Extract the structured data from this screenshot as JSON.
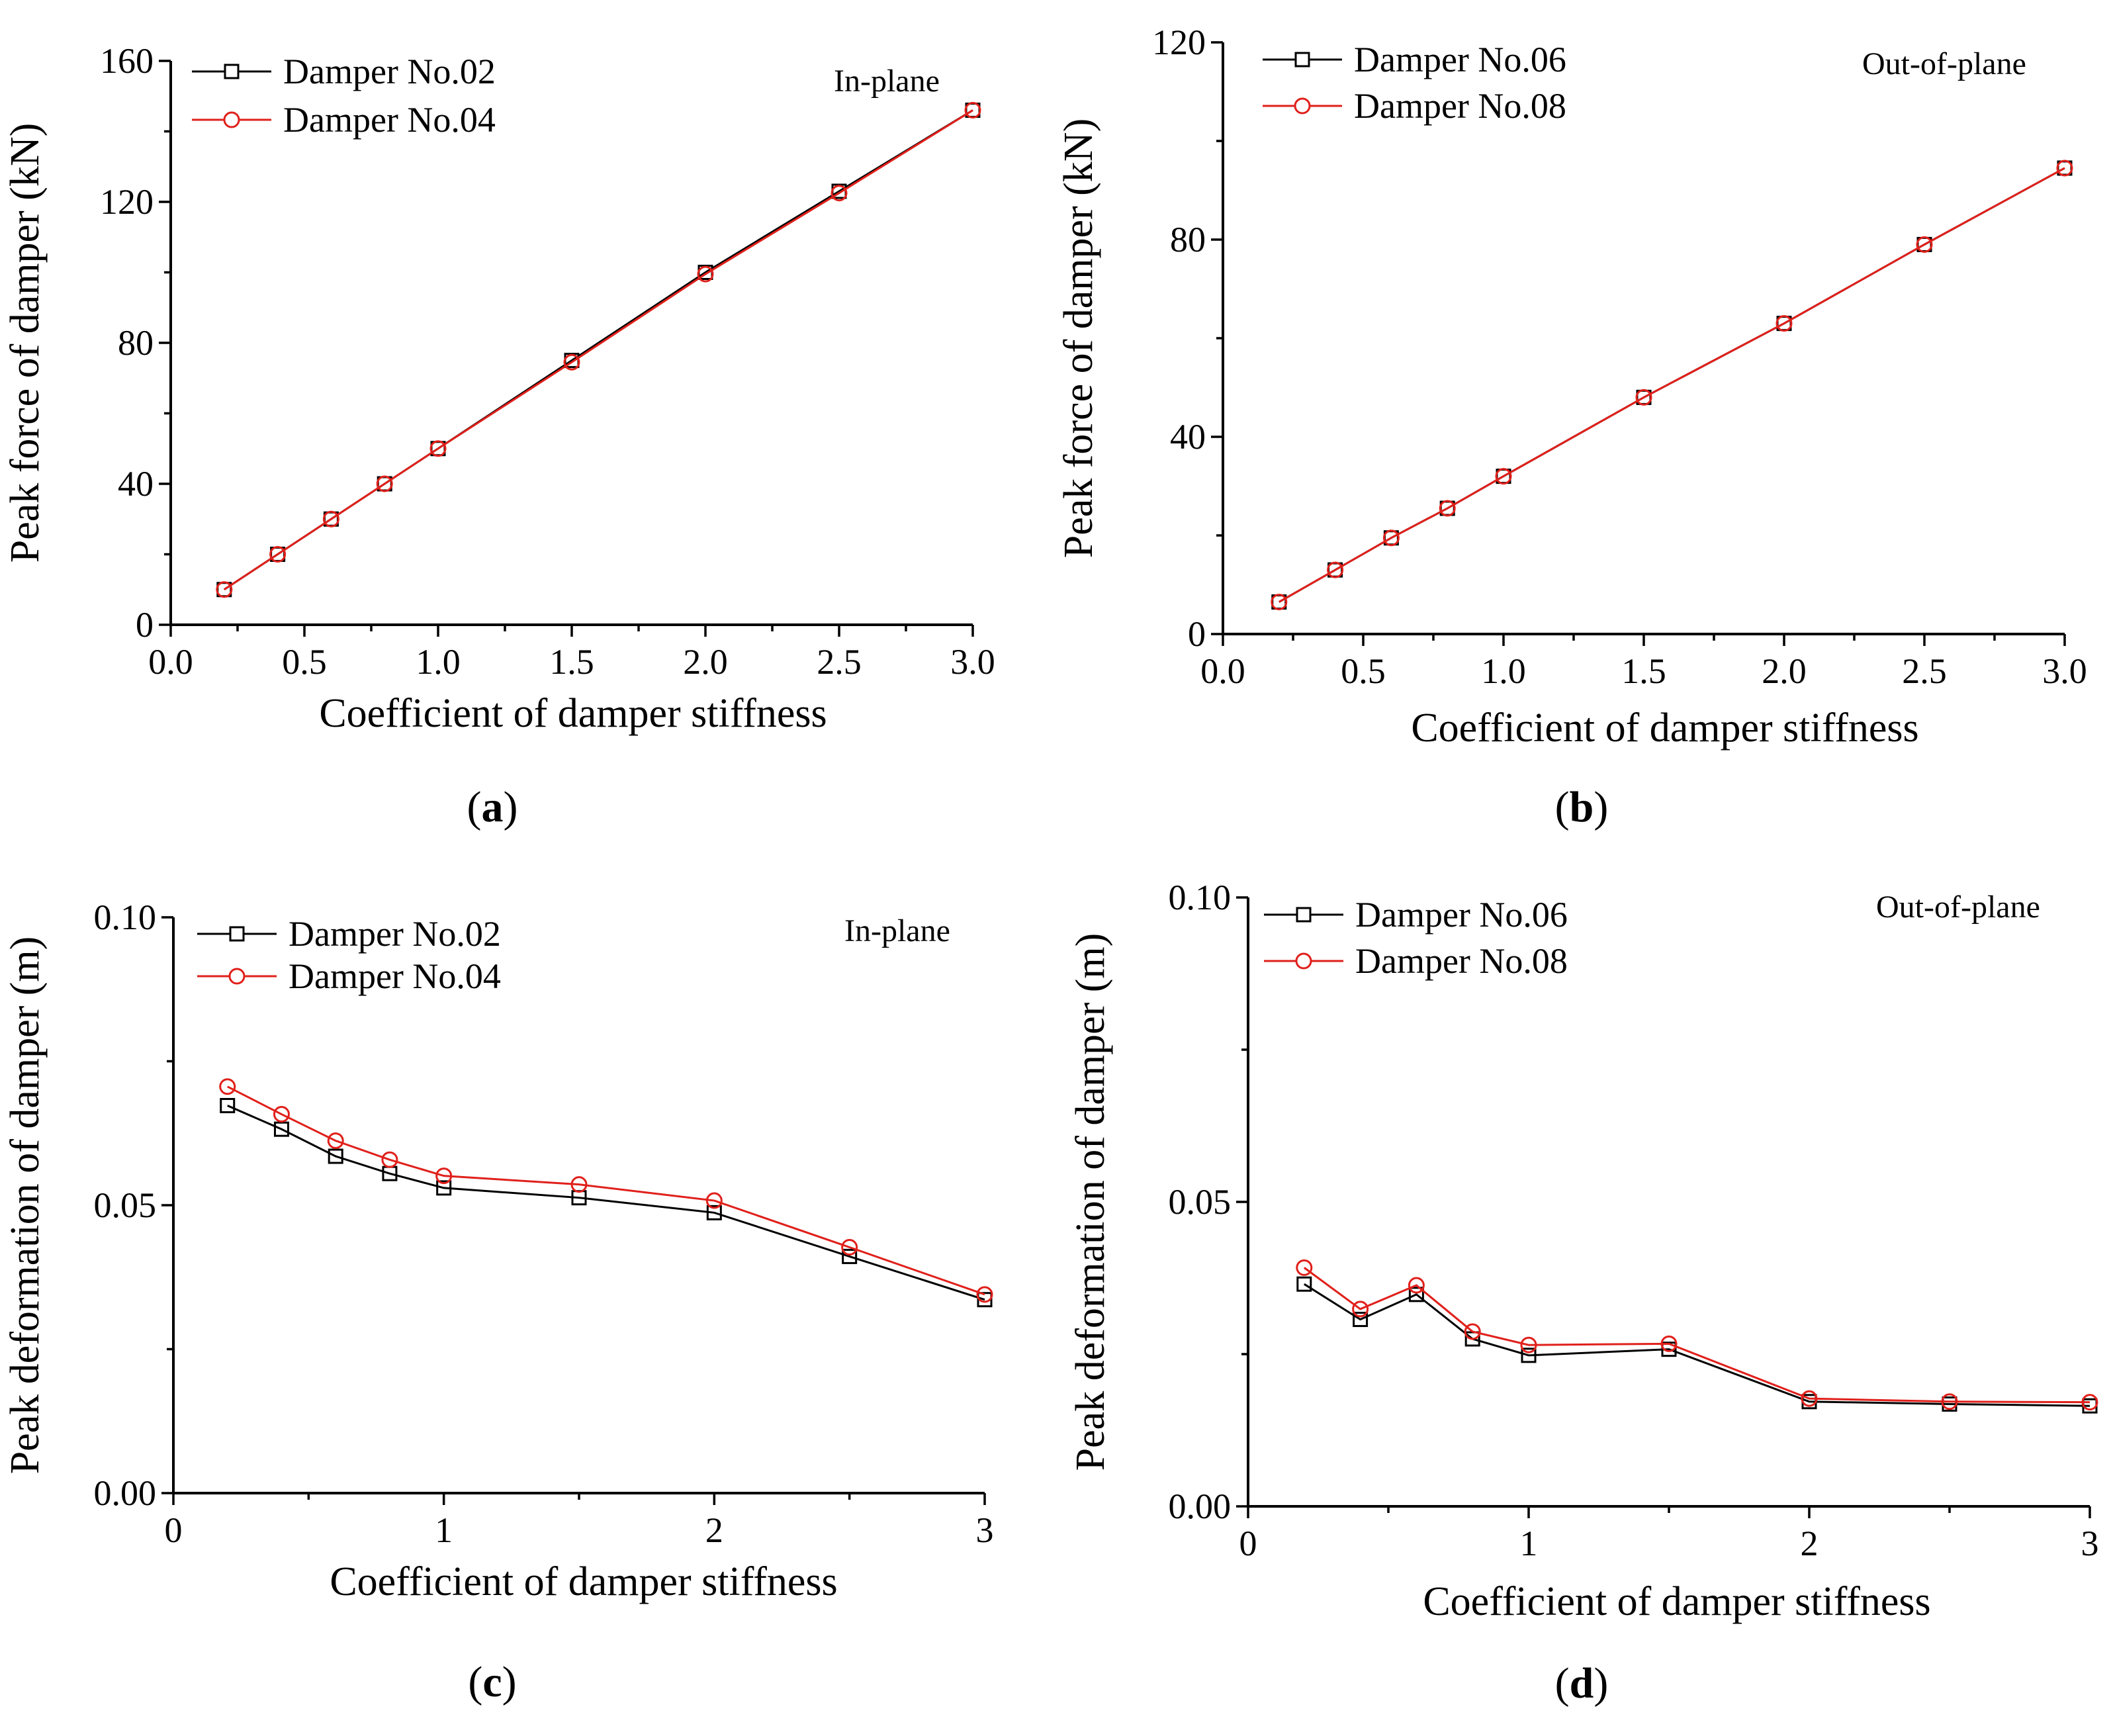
{
  "colors": {
    "black_series": "#000000",
    "red_series": "#E0201B"
  },
  "chart_data": [
    {
      "panel": "a",
      "panel_label": "a",
      "type": "line",
      "annotation": "In-plane",
      "xlabel": "Coefficient of damper stiffness",
      "ylabel": "Peak force of damper (kN)",
      "xlim": [
        0,
        3.0
      ],
      "ylim": [
        0,
        160
      ],
      "xticks": [
        0.0,
        0.5,
        1.0,
        1.5,
        2.0,
        2.5,
        3.0
      ],
      "xtick_labels": [
        "0.0",
        "0.5",
        "1.0",
        "1.5",
        "2.0",
        "2.5",
        "3.0"
      ],
      "yticks": [
        0,
        40,
        80,
        120,
        160
      ],
      "ytick_labels": [
        "0",
        "40",
        "80",
        "120",
        "160"
      ],
      "legend_position": "top-left",
      "x": [
        0.2,
        0.4,
        0.6,
        0.8,
        1.0,
        1.5,
        2.0,
        2.5,
        3.0
      ],
      "series": [
        {
          "name": "Damper No.02",
          "marker": "square",
          "color": "#000000",
          "values": [
            10,
            20,
            30,
            40,
            50,
            75,
            100,
            123,
            146
          ]
        },
        {
          "name": "Damper No.04",
          "marker": "circle",
          "color": "#E0201B",
          "values": [
            10,
            20,
            30,
            40,
            50,
            74.5,
            99.5,
            122.5,
            146
          ]
        }
      ]
    },
    {
      "panel": "b",
      "panel_label": "b",
      "type": "line",
      "annotation": "Out-of-plane",
      "xlabel": "Coefficient of damper stiffness",
      "ylabel": "Peak force of damper (kN)",
      "xlim": [
        0,
        3.0
      ],
      "ylim": [
        0,
        120
      ],
      "xticks": [
        0.0,
        0.5,
        1.0,
        1.5,
        2.0,
        2.5,
        3.0
      ],
      "xtick_labels": [
        "0.0",
        "0.5",
        "1.0",
        "1.5",
        "2.0",
        "2.5",
        "3.0"
      ],
      "yticks": [
        0,
        40,
        80,
        120
      ],
      "ytick_labels": [
        "0",
        "40",
        "80",
        "120"
      ],
      "legend_position": "top-left",
      "x": [
        0.2,
        0.4,
        0.6,
        0.8,
        1.0,
        1.5,
        2.0,
        2.5,
        3.0
      ],
      "series": [
        {
          "name": "Damper No.06",
          "marker": "square",
          "color": "#000000",
          "values": [
            6.5,
            13,
            19.5,
            25.5,
            32,
            48,
            63,
            79,
            94.5
          ]
        },
        {
          "name": "Damper No.08",
          "marker": "circle",
          "color": "#E0201B",
          "values": [
            6.5,
            13,
            19.5,
            25.5,
            32,
            48,
            63,
            79,
            94.5
          ]
        }
      ]
    },
    {
      "panel": "c",
      "panel_label": "c",
      "type": "line",
      "annotation": "In-plane",
      "xlabel": "Coefficient of damper stiffness",
      "ylabel": "Peak deformation of damper (m)",
      "xlim": [
        0,
        3.0
      ],
      "ylim": [
        0,
        0.1
      ],
      "xticks": [
        0,
        1,
        2,
        3
      ],
      "xtick_labels": [
        "0",
        "1",
        "2",
        "3"
      ],
      "yticks": [
        0,
        0.05,
        0.1
      ],
      "ytick_labels": [
        "0.00",
        "0.05",
        "0.10"
      ],
      "legend_position": "top-left",
      "x": [
        0.2,
        0.4,
        0.6,
        0.8,
        1.0,
        1.5,
        2.0,
        2.5,
        3.0
      ],
      "series": [
        {
          "name": "Damper No.02",
          "marker": "square",
          "color": "#000000",
          "values": [
            0.0673,
            0.0632,
            0.0585,
            0.0555,
            0.053,
            0.0513,
            0.0487,
            0.0411,
            0.0336
          ]
        },
        {
          "name": "Damper No.04",
          "marker": "circle",
          "color": "#E0201B",
          "values": [
            0.0706,
            0.0658,
            0.0612,
            0.0579,
            0.0551,
            0.0536,
            0.0508,
            0.0427,
            0.0345
          ]
        }
      ]
    },
    {
      "panel": "d",
      "panel_label": "d",
      "type": "line",
      "annotation": "Out-of-plane",
      "xlabel": "Coefficient of damper stiffness",
      "ylabel": "Peak deformation of damper (m)",
      "xlim": [
        0,
        3.0
      ],
      "ylim": [
        0,
        0.1
      ],
      "xticks": [
        0,
        1,
        2,
        3
      ],
      "xtick_labels": [
        "0",
        "1",
        "2",
        "3"
      ],
      "yticks": [
        0,
        0.05,
        0.1
      ],
      "ytick_labels": [
        "0.00",
        "0.05",
        "0.10"
      ],
      "legend_position": "top-left",
      "x": [
        0.2,
        0.4,
        0.6,
        0.8,
        1.0,
        1.5,
        2.0,
        2.5,
        3.0
      ],
      "series": [
        {
          "name": "Damper No.06",
          "marker": "square",
          "color": "#000000",
          "values": [
            0.0365,
            0.0307,
            0.0348,
            0.0275,
            0.0248,
            0.0258,
            0.0172,
            0.0168,
            0.0165
          ]
        },
        {
          "name": "Damper No.08",
          "marker": "circle",
          "color": "#E0201B",
          "values": [
            0.0392,
            0.0324,
            0.0363,
            0.0287,
            0.0265,
            0.0267,
            0.0177,
            0.0172,
            0.0171
          ]
        }
      ]
    }
  ]
}
